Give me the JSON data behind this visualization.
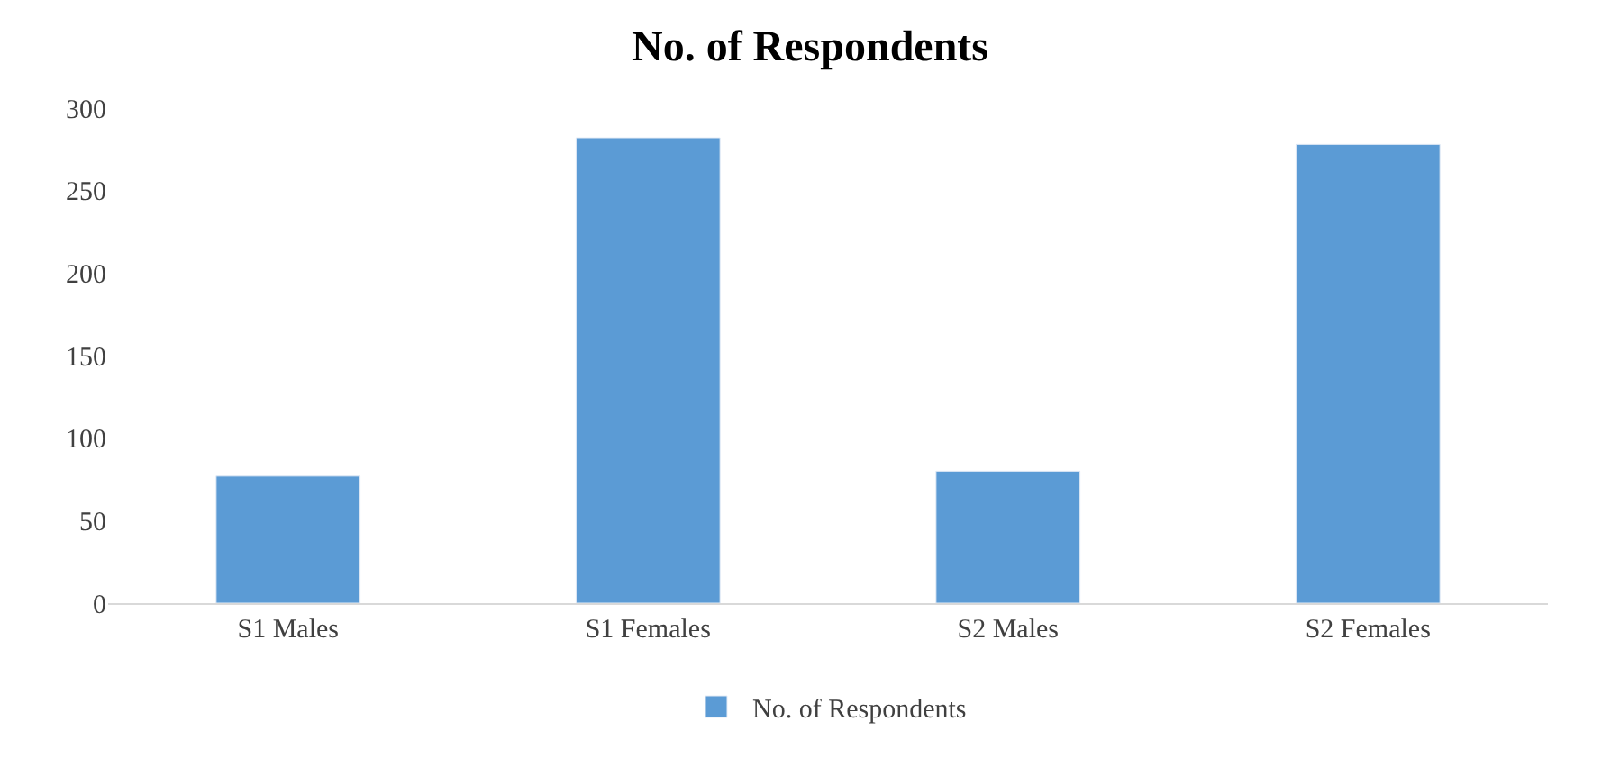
{
  "chart_data": {
    "type": "bar",
    "title": "No. of Respondents",
    "categories": [
      "S1 Males",
      "S1 Females",
      "S2 Males",
      "S2 Females"
    ],
    "series": [
      {
        "name": "No. of Respondents",
        "color": "#5b9bd5",
        "values": [
          77,
          282,
          80,
          278
        ]
      }
    ],
    "ylim": [
      0,
      300
    ],
    "yticks": [
      0,
      50,
      100,
      150,
      200,
      250,
      300
    ],
    "legend": "bottom"
  }
}
